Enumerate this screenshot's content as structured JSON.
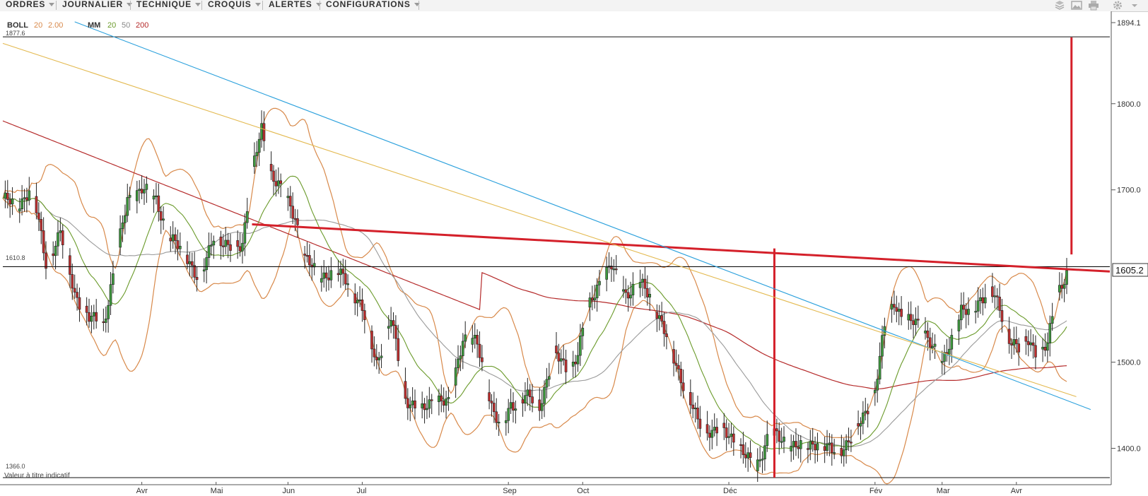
{
  "toolbar": {
    "menus": [
      {
        "label": "ORDRES"
      },
      {
        "label": "JOURNALIER"
      },
      {
        "label": "TECHNIQUE"
      },
      {
        "label": "CROQUIS"
      },
      {
        "label": "ALERTES"
      },
      {
        "label": "CONFIGURATIONS"
      }
    ],
    "icons": [
      "layers-icon",
      "image-icon",
      "print-icon",
      "gear-icon",
      "settings-caret-icon"
    ]
  },
  "legend": {
    "boll_name": "BOLL",
    "boll_period": "20",
    "boll_dev": "2.00",
    "mm_name": "MM",
    "mm_20": "20",
    "mm_50": "50",
    "mm_200": "200"
  },
  "colors": {
    "boll": "#d8894a",
    "mm20": "#6a9a2a",
    "mm50": "#9a9a9a",
    "mm200": "#b52a2a",
    "resistance": "#d4202a",
    "trend_blue": "#2aa0dc",
    "trend_yellow": "#e3b94f",
    "candle_up": "#3e9a3e",
    "candle_down": "#c03030"
  },
  "overlay": {
    "top_level": "1877.6",
    "ref_level": "1610.8",
    "low_level": "1366.0",
    "current_price": "1605.2",
    "disclaimer": "Valeur à titre indicatif"
  },
  "chart_data": {
    "type": "candlestick",
    "instrument_currency": "",
    "ylim": [
      1366.0,
      1894.1
    ],
    "y_ticks": [
      {
        "label": "1894.1",
        "value": 1894.1
      },
      {
        "label": "1800.0",
        "value": 1800.0
      },
      {
        "label": "1700.0",
        "value": 1700.0
      },
      {
        "label": "1500.0",
        "value": 1500.0
      },
      {
        "label": "1400.0",
        "value": 1400.0
      }
    ],
    "x_ticks": [
      "Avr",
      "Mai",
      "Jun",
      "Jul",
      "Sep",
      "Oct",
      "Déc",
      "Fév",
      "Mar",
      "Avr"
    ],
    "x_tick_day": [
      58,
      89,
      119,
      150,
      211,
      242,
      303,
      364,
      392,
      423
    ],
    "x_range_days": [
      0,
      462
    ],
    "close_path": [
      [
        0,
        1690
      ],
      [
        6,
        1680
      ],
      [
        12,
        1705
      ],
      [
        18,
        1615
      ],
      [
        24,
        1650
      ],
      [
        30,
        1580
      ],
      [
        36,
        1550
      ],
      [
        42,
        1545
      ],
      [
        46,
        1600
      ],
      [
        52,
        1690
      ],
      [
        58,
        1700
      ],
      [
        64,
        1690
      ],
      [
        70,
        1640
      ],
      [
        76,
        1630
      ],
      [
        82,
        1590
      ],
      [
        88,
        1650
      ],
      [
        94,
        1630
      ],
      [
        100,
        1640
      ],
      [
        104,
        1720
      ],
      [
        108,
        1770
      ],
      [
        112,
        1720
      ],
      [
        116,
        1700
      ],
      [
        122,
        1670
      ],
      [
        126,
        1620
      ],
      [
        132,
        1600
      ],
      [
        138,
        1605
      ],
      [
        144,
        1595
      ],
      [
        150,
        1560
      ],
      [
        156,
        1500
      ],
      [
        162,
        1550
      ],
      [
        168,
        1460
      ],
      [
        174,
        1440
      ],
      [
        180,
        1460
      ],
      [
        186,
        1450
      ],
      [
        192,
        1530
      ],
      [
        198,
        1520
      ],
      [
        204,
        1450
      ],
      [
        208,
        1420
      ],
      [
        212,
        1450
      ],
      [
        218,
        1460
      ],
      [
        224,
        1450
      ],
      [
        230,
        1510
      ],
      [
        236,
        1490
      ],
      [
        240,
        1510
      ],
      [
        244,
        1560
      ],
      [
        248,
        1590
      ],
      [
        254,
        1610
      ],
      [
        260,
        1580
      ],
      [
        266,
        1590
      ],
      [
        270,
        1580
      ],
      [
        274,
        1550
      ],
      [
        278,
        1520
      ],
      [
        282,
        1490
      ],
      [
        286,
        1460
      ],
      [
        290,
        1430
      ],
      [
        296,
        1420
      ],
      [
        300,
        1420
      ],
      [
        306,
        1410
      ],
      [
        310,
        1390
      ],
      [
        314,
        1375
      ],
      [
        320,
        1420
      ],
      [
        324,
        1410
      ],
      [
        330,
        1405
      ],
      [
        336,
        1400
      ],
      [
        340,
        1410
      ],
      [
        346,
        1395
      ],
      [
        350,
        1400
      ],
      [
        356,
        1420
      ],
      [
        360,
        1440
      ],
      [
        364,
        1470
      ],
      [
        368,
        1540
      ],
      [
        372,
        1570
      ],
      [
        376,
        1550
      ],
      [
        380,
        1545
      ],
      [
        384,
        1540
      ],
      [
        388,
        1520
      ],
      [
        392,
        1495
      ],
      [
        396,
        1530
      ],
      [
        400,
        1560
      ],
      [
        404,
        1555
      ],
      [
        408,
        1575
      ],
      [
        412,
        1585
      ],
      [
        416,
        1560
      ],
      [
        420,
        1530
      ],
      [
        424,
        1515
      ],
      [
        428,
        1525
      ],
      [
        432,
        1510
      ],
      [
        436,
        1520
      ],
      [
        440,
        1580
      ],
      [
        444,
        1605
      ]
    ],
    "overlay_lines": [
      {
        "name": "top-horizontal",
        "color": "black",
        "points": [
          [
            0,
            1877.6
          ],
          [
            462,
            1877.6
          ]
        ]
      },
      {
        "name": "ref-horizontal",
        "color": "black",
        "points": [
          [
            0,
            1610.8
          ],
          [
            462,
            1610.8
          ]
        ]
      },
      {
        "name": "low-horizontal",
        "color": "black",
        "points": [
          [
            0,
            1366.0
          ],
          [
            462,
            1366.0
          ]
        ]
      },
      {
        "name": "red-resistance",
        "color": "red",
        "points": [
          [
            104,
            1660
          ],
          [
            462,
            1605.2
          ]
        ]
      },
      {
        "name": "red-vertical-dec",
        "color": "red",
        "points": [
          [
            322,
            1632
          ],
          [
            322,
            1366
          ]
        ]
      },
      {
        "name": "red-vertical-apr",
        "color": "red",
        "points": [
          [
            446,
            1877
          ],
          [
            446,
            1625
          ]
        ]
      },
      {
        "name": "blue-trend",
        "color": "blue",
        "points": [
          [
            30,
            1895
          ],
          [
            454,
            1445
          ]
        ]
      },
      {
        "name": "yellow-trend",
        "color": "yellow",
        "points": [
          [
            0,
            1870
          ],
          [
            448,
            1460
          ]
        ]
      }
    ]
  }
}
